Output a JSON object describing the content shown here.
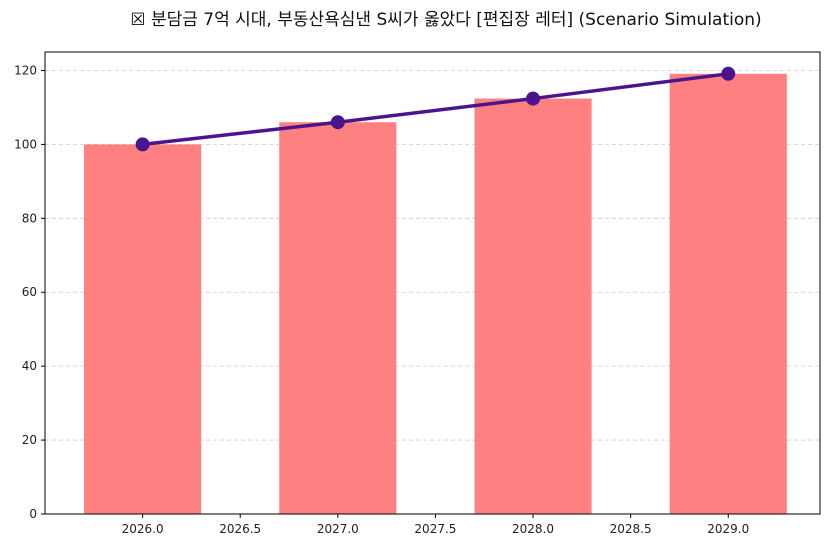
{
  "chart_data": {
    "type": "bar+line",
    "title": "☒ 분담금 7억 시대, 부동산욕심낸 S씨가 옳았다 [편집장 레터] (Scenario Simulation)",
    "xlabel": "",
    "ylabel": "",
    "x": [
      2026,
      2027,
      2028,
      2029
    ],
    "bar_values": [
      100,
      106,
      112.4,
      119.1
    ],
    "line_values": [
      100,
      106,
      112.4,
      119.1
    ],
    "xlim": [
      2025.5,
      2029.47
    ],
    "ylim": [
      0,
      125
    ],
    "xticks": [
      "2026.0",
      "2026.5",
      "2027.0",
      "2027.5",
      "2028.0",
      "2028.5",
      "2029.0"
    ],
    "xtick_values": [
      2026,
      2026.5,
      2027,
      2027.5,
      2028,
      2028.5,
      2029
    ],
    "yticks": [
      "0",
      "20",
      "40",
      "60",
      "80",
      "100",
      "120"
    ],
    "ytick_values": [
      0,
      20,
      40,
      60,
      80,
      100,
      120
    ],
    "bar_width": 0.6,
    "grid": "y-dashed",
    "colors": {
      "bar": "#ff8080",
      "line": "#4a148c",
      "grid": "#cccccc",
      "axis": "#000000"
    }
  }
}
